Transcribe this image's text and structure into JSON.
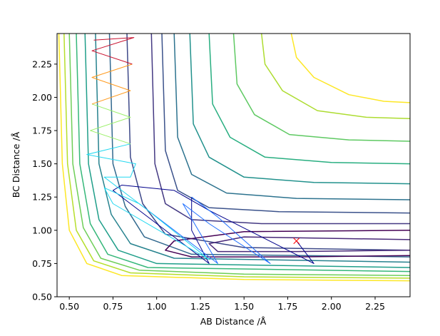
{
  "chart_data": {
    "type": "contour",
    "x_label": "AB Distance /Å",
    "y_label": "BC Distance /Å",
    "xlim": [
      0.43,
      2.45
    ],
    "ylim": [
      0.5,
      2.48
    ],
    "xticks": [
      {
        "value": 0.5,
        "label": "0.50"
      },
      {
        "value": 0.75,
        "label": "0.75"
      },
      {
        "value": 1.0,
        "label": "1.00"
      },
      {
        "value": 1.25,
        "label": "1.25"
      },
      {
        "value": 1.5,
        "label": "1.50"
      },
      {
        "value": 1.75,
        "label": "1.75"
      },
      {
        "value": 2.0,
        "label": "2.00"
      },
      {
        "value": 2.25,
        "label": "2.25"
      }
    ],
    "yticks": [
      {
        "value": 0.5,
        "label": "0.50"
      },
      {
        "value": 0.75,
        "label": "0.75"
      },
      {
        "value": 1.0,
        "label": "1.00"
      },
      {
        "value": 1.25,
        "label": "1.25"
      },
      {
        "value": 1.5,
        "label": "1.50"
      },
      {
        "value": 1.75,
        "label": "1.75"
      },
      {
        "value": 2.0,
        "label": "2.00"
      },
      {
        "value": 2.25,
        "label": "2.25"
      }
    ],
    "contours": [
      {
        "color": "#fde725",
        "x": [
          0.44,
          0.46,
          0.5,
          0.6,
          0.8,
          1.5,
          2.45
        ],
        "y": [
          2.48,
          1.5,
          1.0,
          0.75,
          0.66,
          0.63,
          0.62
        ]
      },
      {
        "color": "#b5de2b",
        "x": [
          0.47,
          0.49,
          0.54,
          0.64,
          0.85,
          1.5,
          2.45
        ],
        "y": [
          2.48,
          1.5,
          1.0,
          0.77,
          0.68,
          0.65,
          0.64
        ]
      },
      {
        "color": "#6ece58",
        "x": [
          0.5,
          0.52,
          0.58,
          0.68,
          0.9,
          1.5,
          2.45
        ],
        "y": [
          2.48,
          1.5,
          1.02,
          0.79,
          0.7,
          0.67,
          0.66
        ]
      },
      {
        "color": "#35b779",
        "x": [
          0.54,
          0.56,
          0.62,
          0.72,
          0.95,
          2.45
        ],
        "y": [
          2.48,
          1.5,
          1.05,
          0.82,
          0.72,
          0.69
        ]
      },
      {
        "color": "#1f9e89",
        "x": [
          0.59,
          0.61,
          0.67,
          0.78,
          1.0,
          2.45
        ],
        "y": [
          2.48,
          1.5,
          1.08,
          0.85,
          0.75,
          0.72
        ]
      },
      {
        "color": "#26828e",
        "x": [
          0.65,
          0.67,
          0.74,
          0.85,
          1.1,
          2.45
        ],
        "y": [
          2.48,
          1.5,
          1.12,
          0.9,
          0.79,
          0.76
        ]
      },
      {
        "color": "#31688e",
        "x": [
          0.73,
          0.75,
          0.82,
          0.93,
          1.2,
          2.45
        ],
        "y": [
          2.48,
          1.5,
          1.18,
          0.95,
          0.82,
          0.8
        ]
      },
      {
        "color": "#3e4989",
        "x": [
          0.83,
          0.85,
          0.92,
          1.05,
          1.5,
          2.45
        ],
        "y": [
          2.48,
          1.55,
          1.2,
          0.97,
          0.87,
          0.85
        ]
      },
      {
        "color": "#440154",
        "x": [
          2.45,
          1.5,
          1.1,
          1.05,
          1.2,
          1.8,
          2.45
        ],
        "y": [
          1.0,
          0.99,
          0.92,
          0.85,
          0.8,
          0.8,
          0.81
        ]
      },
      {
        "color": "#482878",
        "x": [
          2.45,
          1.5,
          1.3,
          1.35,
          1.8,
          2.45
        ],
        "y": [
          0.93,
          0.95,
          0.9,
          0.84,
          0.84,
          0.85
        ]
      },
      {
        "color": "#443983",
        "x": [
          0.97,
          0.99,
          1.05,
          1.2,
          1.6,
          2.45
        ],
        "y": [
          2.48,
          1.5,
          1.2,
          1.08,
          1.05,
          1.05
        ]
      },
      {
        "color": "#3b528b",
        "x": [
          1.03,
          1.05,
          1.12,
          1.3,
          1.7,
          2.45
        ],
        "y": [
          2.48,
          1.6,
          1.3,
          1.17,
          1.14,
          1.13
        ]
      },
      {
        "color": "#2c728e",
        "x": [
          1.1,
          1.12,
          1.2,
          1.4,
          1.8,
          2.45
        ],
        "y": [
          2.48,
          1.7,
          1.42,
          1.28,
          1.24,
          1.23
        ]
      },
      {
        "color": "#21918c",
        "x": [
          1.19,
          1.21,
          1.3,
          1.5,
          1.9,
          2.45
        ],
        "y": [
          2.48,
          1.8,
          1.55,
          1.4,
          1.36,
          1.35
        ]
      },
      {
        "color": "#28ae80",
        "x": [
          1.3,
          1.32,
          1.42,
          1.62,
          2.0,
          2.45
        ],
        "y": [
          2.48,
          1.95,
          1.7,
          1.55,
          1.51,
          1.5
        ]
      },
      {
        "color": "#5ec962",
        "x": [
          1.44,
          1.46,
          1.56,
          1.76,
          2.1,
          2.45
        ],
        "y": [
          2.48,
          2.1,
          1.87,
          1.72,
          1.68,
          1.67
        ]
      },
      {
        "color": "#addc30",
        "x": [
          1.6,
          1.62,
          1.72,
          1.92,
          2.2,
          2.45
        ],
        "y": [
          2.48,
          2.25,
          2.05,
          1.9,
          1.85,
          1.84
        ]
      },
      {
        "color": "#fde725",
        "x": [
          1.77,
          1.8,
          1.9,
          2.1,
          2.3,
          2.45
        ],
        "y": [
          2.48,
          2.3,
          2.15,
          2.02,
          1.97,
          1.96
        ]
      }
    ],
    "trajectory": [
      {
        "color": "#00008b",
        "x": [
          1.8,
          1.9,
          1.6,
          1.3,
          1.1,
          0.8,
          0.75,
          1.0,
          1.3,
          1.2,
          1.2
        ],
        "y": [
          0.92,
          0.75,
          0.95,
          1.15,
          1.3,
          1.34,
          1.3,
          1.05,
          0.75,
          1.0,
          1.25
        ]
      },
      {
        "color": "#1e6fff",
        "x": [
          1.2,
          1.35,
          1.65,
          1.3,
          1.15,
          1.35,
          1.1,
          0.9
        ],
        "y": [
          1.25,
          1.1,
          0.75,
          1.05,
          1.2,
          0.75,
          1.0,
          1.2
        ]
      },
      {
        "color": "#22d8f0",
        "x": [
          0.9,
          0.7,
          0.75,
          1.3,
          0.95,
          0.7,
          0.85,
          0.88,
          0.6,
          0.85
        ],
        "y": [
          1.2,
          1.32,
          1.2,
          0.78,
          1.15,
          1.4,
          1.4,
          1.5,
          1.57,
          1.65
        ]
      },
      {
        "color": "#9cf06a",
        "x": [
          0.85,
          0.62,
          0.85,
          0.63
        ],
        "y": [
          1.65,
          1.75,
          1.85,
          1.95
        ]
      },
      {
        "color": "#ff9a1e",
        "x": [
          0.63,
          0.85,
          0.63,
          0.86
        ],
        "y": [
          1.95,
          2.05,
          2.15,
          2.25
        ]
      },
      {
        "color": "#c8102e",
        "x": [
          0.86,
          0.63,
          0.87,
          0.64
        ],
        "y": [
          2.25,
          2.35,
          2.45,
          2.43
        ]
      }
    ],
    "marker": {
      "x": 1.8,
      "y": 0.92,
      "color": "#ff0000"
    }
  }
}
